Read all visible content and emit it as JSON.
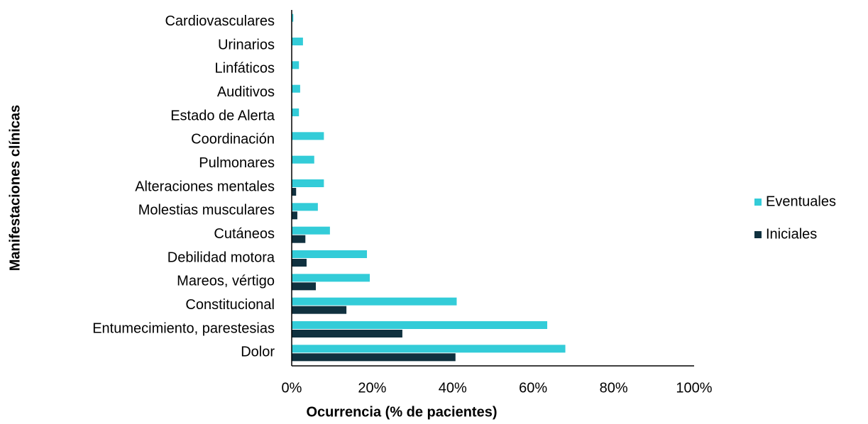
{
  "chart_data": {
    "type": "bar",
    "orientation": "horizontal",
    "xlabel": "Ocurrencia (% de pacientes)",
    "ylabel": "Manifestaciones clínicas",
    "categories": [
      "Dolor",
      "Entumecimiento, parestesias",
      "Constitucional",
      "Mareos, vértigo",
      "Debilidad motora",
      "Cutáneos",
      "Molestias musculares",
      "Alteraciones mentales",
      "Pulmonares",
      "Coordinación",
      "Estado de Alerta",
      "Auditivos",
      "Linfáticos",
      "Urinarios",
      "Cardiovasculares"
    ],
    "series": [
      {
        "name": "Eventuales",
        "color": "#33ccd8",
        "values": [
          68,
          63.5,
          41,
          19.4,
          18.7,
          9.5,
          6.5,
          8,
          5.6,
          8,
          1.8,
          2.1,
          1.8,
          2.8,
          0.4
        ]
      },
      {
        "name": "Iniciales",
        "color": "#10313f",
        "values": [
          40.7,
          27.5,
          13.6,
          6,
          3.7,
          3.4,
          1.4,
          1.1,
          0,
          0,
          0,
          0,
          0,
          0,
          0
        ]
      }
    ],
    "xlim": [
      0,
      100
    ],
    "xticks": [
      {
        "value": 0,
        "label": "0%"
      },
      {
        "value": 20,
        "label": "20%"
      },
      {
        "value": 40,
        "label": "40%"
      },
      {
        "value": 60,
        "label": "60%"
      },
      {
        "value": 80,
        "label": "80%"
      },
      {
        "value": 100,
        "label": "100%"
      }
    ],
    "grid": false,
    "legend": "right"
  }
}
